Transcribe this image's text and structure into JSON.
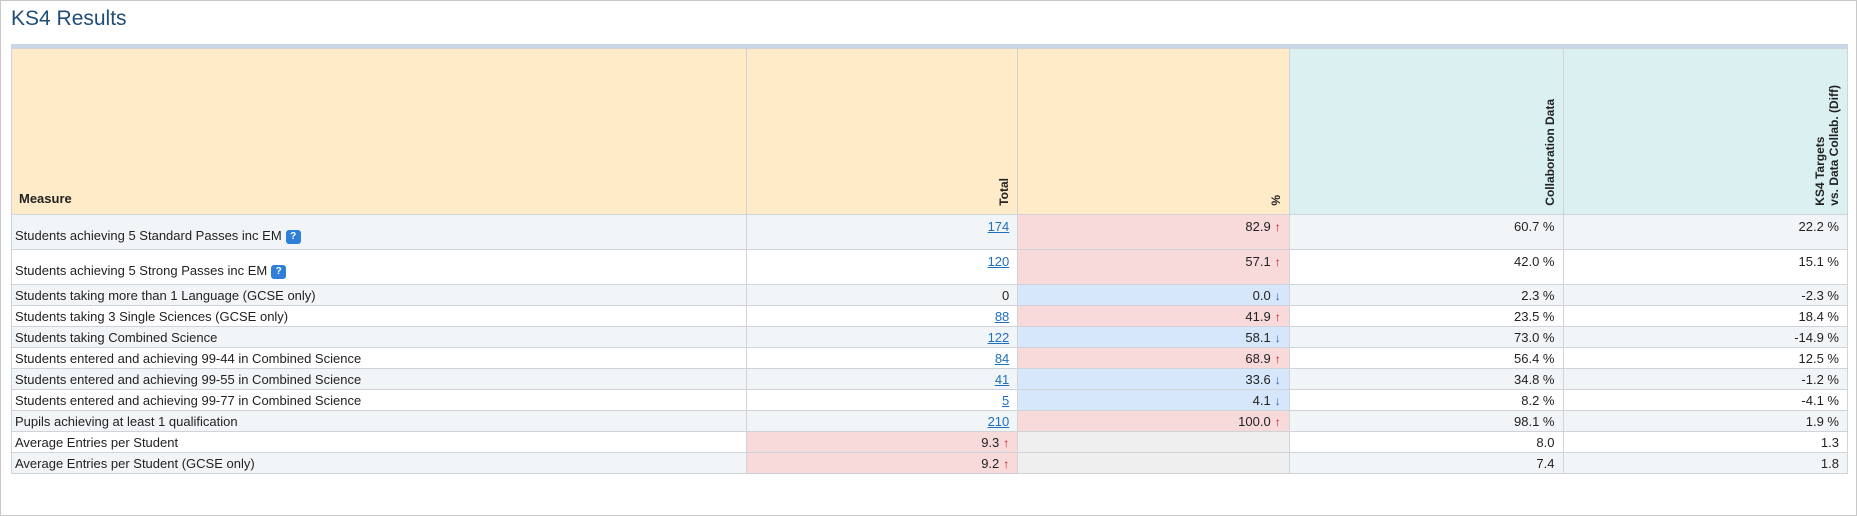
{
  "page": {
    "title": "KS4 Results"
  },
  "columns": {
    "measure": "Measure",
    "total": "Total",
    "percent": "%",
    "collab": "Collaboration Data",
    "targets_line1": "KS4 Targets",
    "targets_line2": "vs. Data Collab. (Diff)"
  },
  "rows": [
    {
      "measure": "Students achieving 5 Standard Passes inc EM",
      "help": "?",
      "total": "174",
      "total_link": true,
      "percent": "82.9",
      "trend": "up",
      "collab": "60.7 %",
      "diff": "22.2 %"
    },
    {
      "measure": "Students achieving 5 Strong Passes inc EM",
      "help": "?",
      "total": "120",
      "total_link": true,
      "percent": "57.1",
      "trend": "up",
      "collab": "42.0 %",
      "diff": "15.1 %"
    },
    {
      "measure": "Students taking more than 1 Language (GCSE only)",
      "total": "0",
      "total_link": false,
      "percent": "0.0",
      "trend": "down",
      "collab": "2.3 %",
      "diff": "-2.3 %"
    },
    {
      "measure": "Students taking 3 Single Sciences (GCSE only)",
      "total": "88",
      "total_link": true,
      "percent": "41.9",
      "trend": "up",
      "collab": "23.5 %",
      "diff": "18.4 %"
    },
    {
      "measure": "Students taking Combined Science",
      "total": "122",
      "total_link": true,
      "percent": "58.1",
      "trend": "down",
      "collab": "73.0 %",
      "diff": "-14.9 %"
    },
    {
      "measure": "Students entered and achieving 99-44 in Combined Science",
      "total": "84",
      "total_link": true,
      "percent": "68.9",
      "trend": "up",
      "collab": "56.4 %",
      "diff": "12.5 %"
    },
    {
      "measure": "Students entered and achieving 99-55 in Combined Science",
      "total": "41",
      "total_link": true,
      "percent": "33.6",
      "trend": "down",
      "collab": "34.8 %",
      "diff": "-1.2 %"
    },
    {
      "measure": "Students entered and achieving 99-77 in Combined Science",
      "total": "5",
      "total_link": true,
      "percent": "4.1",
      "trend": "down",
      "collab": "8.2 %",
      "diff": "-4.1 %"
    },
    {
      "measure": "Pupils achieving at least 1 qualification",
      "total": "210",
      "total_link": true,
      "percent": "100.0",
      "trend": "up",
      "collab": "98.1 %",
      "diff": "1.9 %"
    },
    {
      "measure": "Average Entries per Student",
      "total": "9.3",
      "total_trend": "up",
      "total_link": false,
      "percent": "",
      "collab": "8.0",
      "diff": "1.3"
    },
    {
      "measure": "Average Entries per Student (GCSE only)",
      "total": "9.2",
      "total_trend": "up",
      "total_link": false,
      "percent": "",
      "collab": "7.4",
      "diff": "1.8"
    }
  ],
  "icons": {
    "up": "↑",
    "down": "↓"
  },
  "colors": {
    "up_bg": "#f9dadb",
    "down_bg": "#d6e6fb",
    "up_arrow": "#cc1111",
    "down_arrow": "#2a5fa8",
    "header_warm": "#ffebc8",
    "header_cool": "#daf0f1",
    "title": "#1f4e79"
  }
}
